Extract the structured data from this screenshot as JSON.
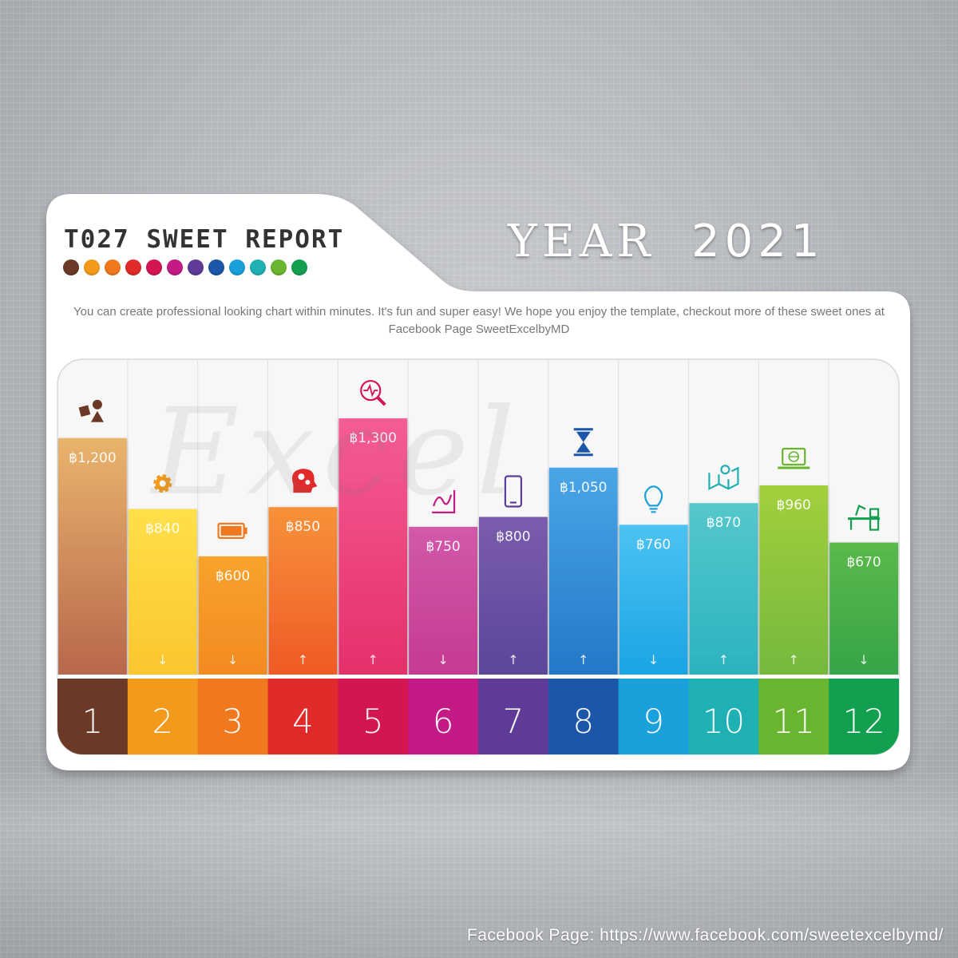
{
  "header": {
    "title": "T027 SWEET REPORT",
    "year_label": "YEAR",
    "year_value": "2021",
    "description": "You can create professional looking chart within minutes. It's fun and super easy! We hope you enjoy the template, checkout more of these sweet ones at Facebook Page SweetExcelbyMD"
  },
  "palette": [
    "#6b3a26",
    "#f39a1c",
    "#f0791f",
    "#e12a2a",
    "#d31552",
    "#c41a85",
    "#5d3b96",
    "#1c56a8",
    "#1aa0db",
    "#1fb0b3",
    "#6ab530",
    "#12a050"
  ],
  "watermark": "Excel",
  "footer": "Facebook Page: https://www.facebook.com/sweetexcelbymd/",
  "chart_data": {
    "type": "bar",
    "categories": [
      "1",
      "2",
      "3",
      "4",
      "5",
      "6",
      "7",
      "8",
      "9",
      "10",
      "11",
      "12"
    ],
    "values": [
      1200,
      840,
      600,
      850,
      1300,
      750,
      800,
      1050,
      760,
      870,
      960,
      670
    ],
    "labels": [
      "฿1,200",
      "฿840",
      "฿600",
      "฿850",
      "฿1,300",
      "฿750",
      "฿800",
      "฿1,050",
      "฿760",
      "฿870",
      "฿960",
      "฿670"
    ],
    "trend": [
      "",
      "↓",
      "↓",
      "↑",
      "↑",
      "↓",
      "↑",
      "↑",
      "↓",
      "↑",
      "↑",
      "↓"
    ],
    "icons": [
      "shapes-icon",
      "gear-icon",
      "battery-icon",
      "head-gears-icon",
      "magnifier-pulse-icon",
      "trend-chart-icon",
      "smartphone-icon",
      "hourglass-icon",
      "lightbulb-icon",
      "map-pin-icon",
      "laptop-globe-icon",
      "desk-icon"
    ],
    "bar_colors_top": [
      "#e9b46c",
      "#ffe04a",
      "#f8a32c",
      "#f7923a",
      "#f45c95",
      "#d259a9",
      "#7b5cae",
      "#4aa6e6",
      "#4cc3f2",
      "#55c7cd",
      "#a3cf3d",
      "#5ab94a"
    ],
    "bar_colors_bottom": [
      "#b8674c",
      "#fbc52e",
      "#f38a22",
      "#ef5a25",
      "#e5306a",
      "#c43a93",
      "#5b469a",
      "#2478c9",
      "#1aa4e4",
      "#2bb3bd",
      "#74b93c",
      "#36a447"
    ],
    "base_colors": [
      "#6b3a26",
      "#f39a1c",
      "#f0791f",
      "#e12a2a",
      "#d31552",
      "#c41a85",
      "#5d3b96",
      "#1c56a8",
      "#1aa0db",
      "#1fb0b3",
      "#6ab530",
      "#12a050"
    ],
    "icon_colors": [
      "#6b3a26",
      "#f39a1c",
      "#f0791f",
      "#e12a2a",
      "#d31552",
      "#c41a85",
      "#5d3b96",
      "#1c56a8",
      "#1aa0db",
      "#1fb0b3",
      "#6ab530",
      "#12a050"
    ],
    "ylim": [
      0,
      1600
    ],
    "grid": false,
    "legend": "none"
  }
}
